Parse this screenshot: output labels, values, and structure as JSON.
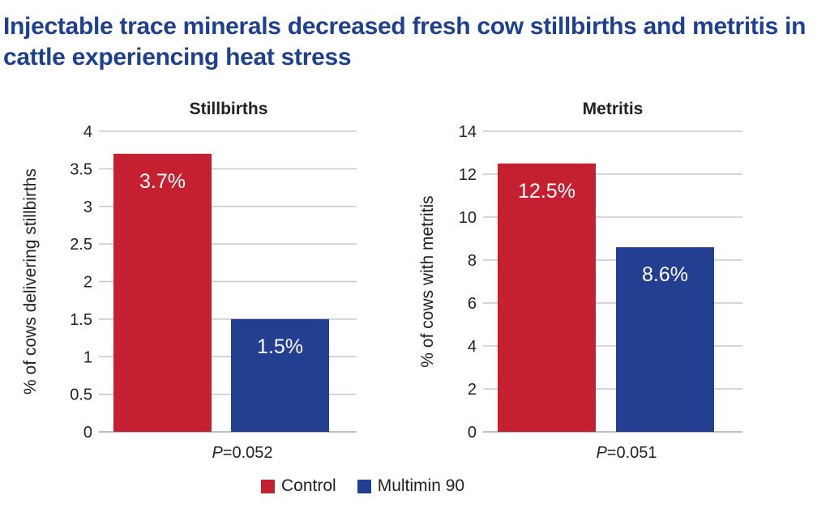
{
  "title": "Injectable trace minerals decreased fresh cow stillbirths and metritis in cattle experiencing heat stress",
  "colors": {
    "control": "#c4202f",
    "multimin": "#233f92",
    "grid": "#c8c8c8",
    "text": "#231f20"
  },
  "legend": [
    {
      "label": "Control",
      "color": "#c4202f"
    },
    {
      "label": "Multimin 90",
      "color": "#233f92"
    }
  ],
  "chart_data": [
    {
      "type": "bar",
      "title": "Stillbirths",
      "ylabel": "% of cows delivering stillbirths",
      "ylim": [
        0,
        4
      ],
      "yticks": [
        "0",
        "0.5",
        "1",
        "1.5",
        "2",
        "2.5",
        "3",
        "3.5",
        "4"
      ],
      "categories": [
        "Control",
        "Multimin 90"
      ],
      "values": [
        3.7,
        1.5
      ],
      "data_labels": [
        "3.7%",
        "1.5%"
      ],
      "p_prefix": "P",
      "p_value": "=0.052",
      "grid": true
    },
    {
      "type": "bar",
      "title": "Metritis",
      "ylabel": "% of cows with metritis",
      "ylim": [
        0,
        14
      ],
      "yticks": [
        "0",
        "2",
        "4",
        "6",
        "8",
        "10",
        "12",
        "14"
      ],
      "categories": [
        "Control",
        "Multimin 90"
      ],
      "values": [
        12.5,
        8.6
      ],
      "data_labels": [
        "12.5%",
        "8.6%"
      ],
      "p_prefix": "P",
      "p_value": "=0.051",
      "grid": true
    }
  ]
}
